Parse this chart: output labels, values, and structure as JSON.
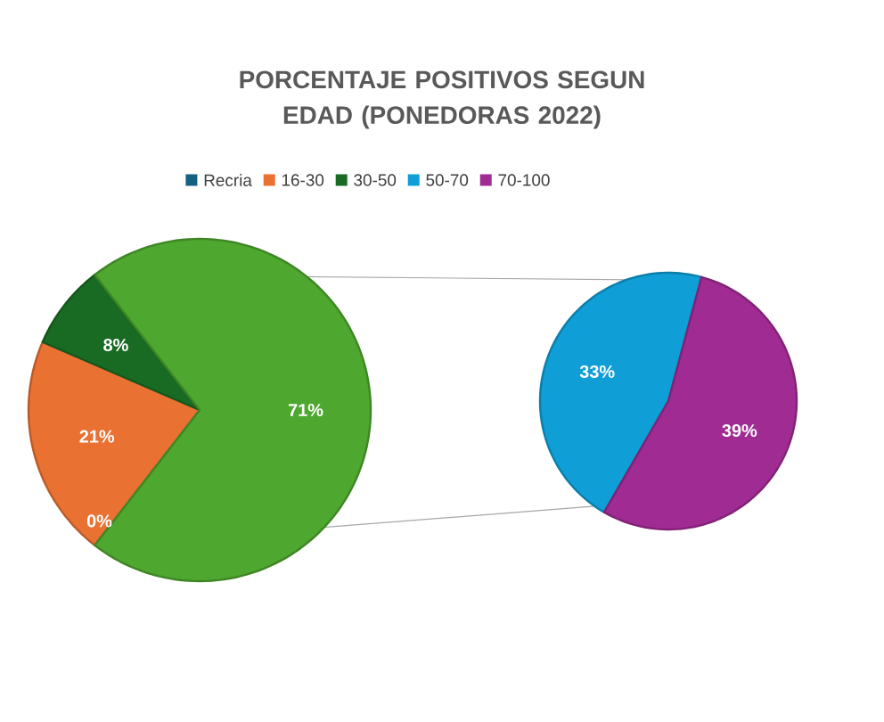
{
  "chart_data": [
    {
      "type": "pie",
      "title": "PORCENTAJE POSITIVOS SEGUN EDAD (PONEDORAS 2022)",
      "categories": [
        "Recria",
        "16-30",
        "30-50",
        null
      ],
      "values": [
        0,
        21,
        8,
        71
      ],
      "colors": [
        "#156082",
        "#e97132",
        "#196b24",
        "#4ea72e"
      ],
      "value_labels": [
        "0%",
        "21%",
        "8%",
        "71%"
      ],
      "legend": "top"
    },
    {
      "type": "pie",
      "categories": [
        "50-70",
        "70-100"
      ],
      "values": [
        33,
        39
      ],
      "colors": [
        "#0f9ed5",
        "#a02b93"
      ],
      "value_labels": [
        "33%",
        "39%"
      ],
      "legend": "top"
    }
  ]
}
